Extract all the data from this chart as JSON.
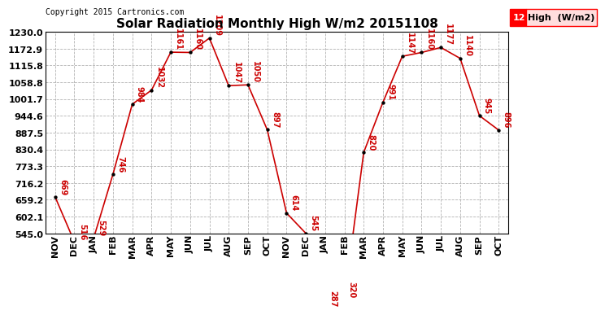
{
  "title": "Solar Radiation Monthly High W/m2 20151108",
  "copyright": "Copyright 2015 Cartronics.com",
  "legend_label": "High  (W/m2)",
  "legend_value": "12",
  "categories": [
    "NOV",
    "DEC",
    "JAN",
    "FEB",
    "MAR",
    "APR",
    "MAY",
    "JUN",
    "JUL",
    "AUG",
    "SEP",
    "OCT",
    "NOV",
    "DEC",
    "JAN",
    "FEB",
    "MAR",
    "APR",
    "MAY",
    "JUN",
    "JUL",
    "AUG",
    "SEP",
    "OCT"
  ],
  "values": [
    669,
    516,
    529,
    746,
    984,
    1032,
    1161,
    1160,
    1209,
    1047,
    1050,
    897,
    614,
    545,
    287,
    320,
    820,
    991,
    1147,
    1160,
    1177,
    1140,
    945,
    896
  ],
  "ylim": [
    545.0,
    1230.0
  ],
  "yticks": [
    545.0,
    602.1,
    659.2,
    716.2,
    773.3,
    830.4,
    887.5,
    944.6,
    1001.7,
    1058.8,
    1115.8,
    1172.9,
    1230.0
  ],
  "line_color": "#cc0000",
  "marker_color": "#000000",
  "label_color": "#cc0000",
  "bg_color": "#ffffff",
  "grid_color": "#aaaaaa",
  "title_fontsize": 11,
  "label_fontsize": 7,
  "tick_fontsize": 8,
  "copyright_fontsize": 7
}
